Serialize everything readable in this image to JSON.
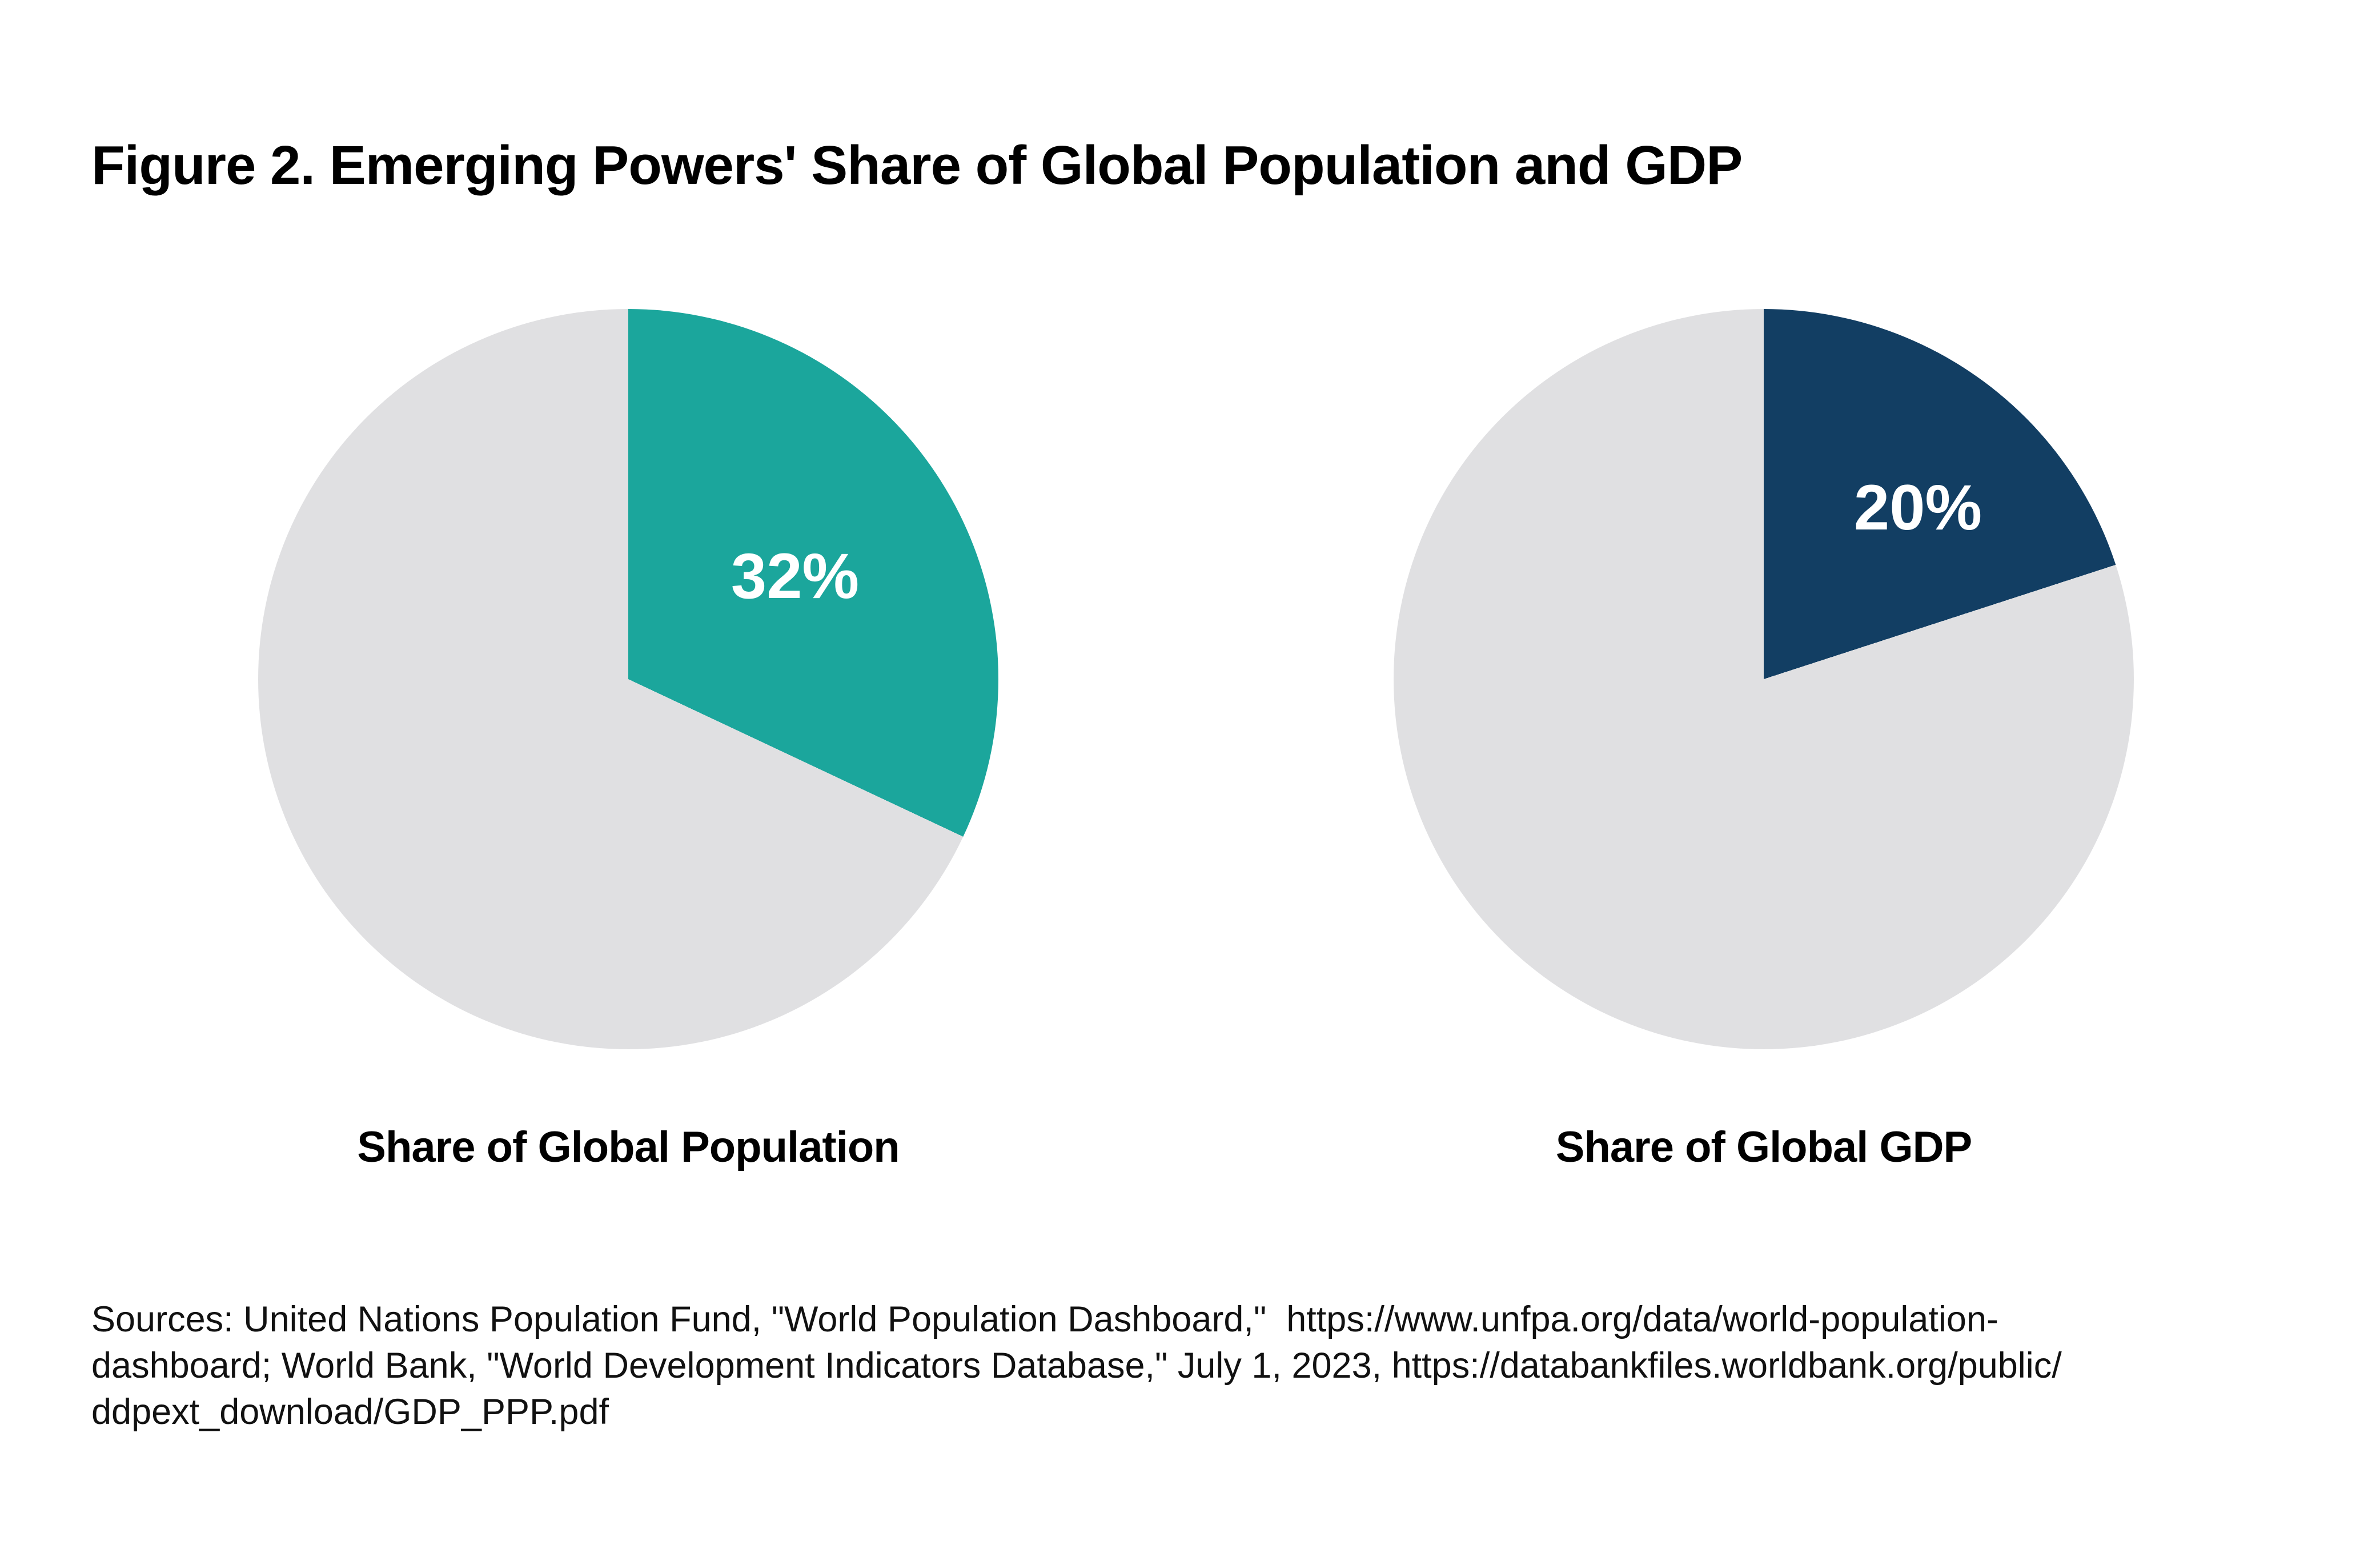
{
  "figure": {
    "title": "Figure 2. Emerging Powers' Share of Global Population and GDP"
  },
  "chart_data": [
    {
      "type": "pie",
      "title": "Share of Global Population",
      "values": [
        32,
        68
      ],
      "data_labels": [
        "32%",
        ""
      ],
      "colors": [
        "#1BA69C",
        "#E0E0E2"
      ],
      "start_angle_deg": 0,
      "direction": "clockwise",
      "legend": "none"
    },
    {
      "type": "pie",
      "title": "Share of Global GDP",
      "values": [
        20,
        80
      ],
      "data_labels": [
        "20%",
        ""
      ],
      "colors": [
        "#123E63",
        "#E0E0E2"
      ],
      "start_angle_deg": 0,
      "direction": "clockwise",
      "legend": "none"
    }
  ],
  "sources": {
    "lines": [
      "Sources: United Nations Population Fund, \"World Population Dashboard,\"  https://www.unfpa.org/data/world-population-",
      "dashboard; World Bank, \"World Development Indicators Database,\" July 1, 2023, https://databankfiles.worldbank.org/public/",
      "ddpext_download/GDP_PPP.pdf"
    ]
  }
}
